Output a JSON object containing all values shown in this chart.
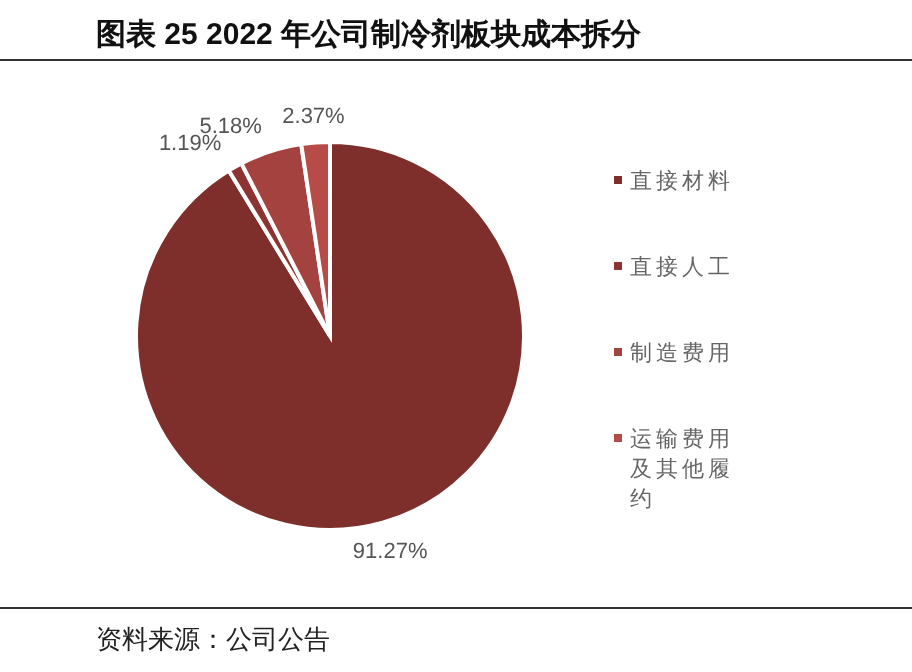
{
  "chart_data": {
    "type": "pie",
    "title": "图表 25 2022 年公司制冷剂板块成本拆分",
    "categories": [
      "直接材料",
      "直接人工",
      "制造费用",
      "运输费用及其他履约"
    ],
    "values": [
      91.27,
      1.19,
      5.18,
      2.37
    ],
    "value_labels": [
      "91.27%",
      "1.19%",
      "5.18%",
      "2.37%"
    ],
    "colors": [
      "#7e2f2c",
      "#8c3431",
      "#a3423e",
      "#b64b47"
    ],
    "legend": "right",
    "annotations": [
      "资料来源：公司公告"
    ]
  }
}
